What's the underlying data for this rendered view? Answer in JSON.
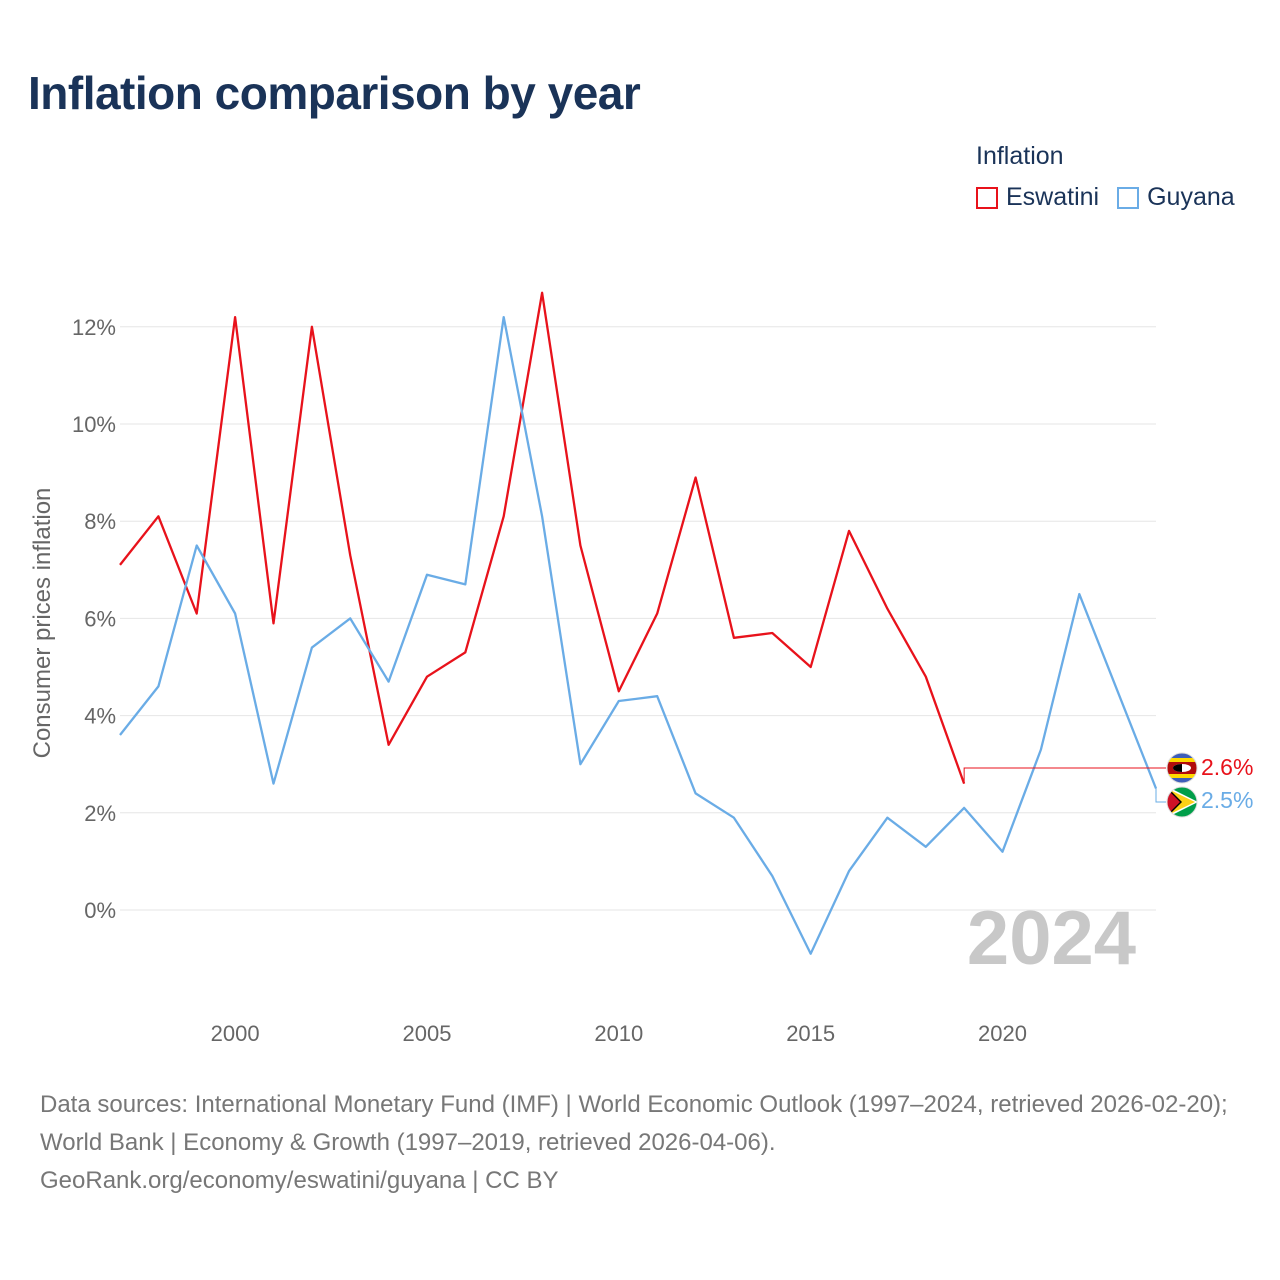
{
  "title": "Inflation comparison by year",
  "legend": {
    "title": "Inflation",
    "items": [
      {
        "label": "Eswatini",
        "color": "#e8121b"
      },
      {
        "label": "Guyana",
        "color": "#6aace6"
      }
    ]
  },
  "year_watermark": "2024",
  "end_labels": {
    "eswatini": "2.6%",
    "guyana": "2.5%"
  },
  "sources": {
    "line1": "Data sources: International Monetary Fund (IMF) | World Economic Outlook (1997–2024, retrieved 2026-02-20); World Bank | Economy & Growth (1997–2019, retrieved 2026-04-06).",
    "line2": "GeoRank.org/economy/eswatini/guyana | CC BY"
  },
  "chart_data": {
    "type": "line",
    "title": "Inflation comparison by year",
    "xlabel": "",
    "ylabel": "Consumer prices inflation",
    "xlim": [
      1997,
      2024
    ],
    "ylim": [
      -2,
      13
    ],
    "x_ticks": [
      {
        "value": 2000,
        "label": "2000"
      },
      {
        "value": 2005,
        "label": "2005"
      },
      {
        "value": 2010,
        "label": "2010"
      },
      {
        "value": 2015,
        "label": "2015"
      },
      {
        "value": 2020,
        "label": "2020"
      }
    ],
    "y_ticks": [
      {
        "value": 0,
        "label": "0%"
      },
      {
        "value": 2,
        "label": "2%"
      },
      {
        "value": 4,
        "label": "4%"
      },
      {
        "value": 6,
        "label": "6%"
      },
      {
        "value": 8,
        "label": "8%"
      },
      {
        "value": 10,
        "label": "10%"
      },
      {
        "value": 12,
        "label": "12%"
      }
    ],
    "grid": true,
    "legend_position": "top-right",
    "series": [
      {
        "name": "Eswatini",
        "color": "#e8121b",
        "x": [
          1997,
          1998,
          1999,
          2000,
          2001,
          2002,
          2003,
          2004,
          2005,
          2006,
          2007,
          2008,
          2009,
          2010,
          2011,
          2012,
          2013,
          2014,
          2015,
          2016,
          2017,
          2018,
          2019
        ],
        "values": [
          7.1,
          8.1,
          6.1,
          12.2,
          5.9,
          12.0,
          7.3,
          3.4,
          4.8,
          5.3,
          8.1,
          12.7,
          7.5,
          4.5,
          6.1,
          8.9,
          5.6,
          5.7,
          5.0,
          7.8,
          6.2,
          4.8,
          2.6
        ],
        "end_value": 2.6,
        "end_label": "2.6%"
      },
      {
        "name": "Guyana",
        "color": "#6aace6",
        "x": [
          1997,
          1998,
          1999,
          2000,
          2001,
          2002,
          2003,
          2004,
          2005,
          2006,
          2007,
          2008,
          2009,
          2010,
          2011,
          2012,
          2013,
          2014,
          2015,
          2016,
          2017,
          2018,
          2019,
          2020,
          2021,
          2022,
          2023,
          2024
        ],
        "values": [
          3.6,
          4.6,
          7.5,
          6.1,
          2.6,
          5.4,
          6.0,
          4.7,
          6.9,
          6.7,
          12.2,
          8.1,
          3.0,
          4.3,
          4.4,
          2.4,
          1.9,
          0.7,
          -0.9,
          0.8,
          1.9,
          1.3,
          2.1,
          1.2,
          3.3,
          6.5,
          4.5,
          2.5
        ],
        "end_value": 2.5,
        "end_label": "2.5%"
      }
    ]
  }
}
